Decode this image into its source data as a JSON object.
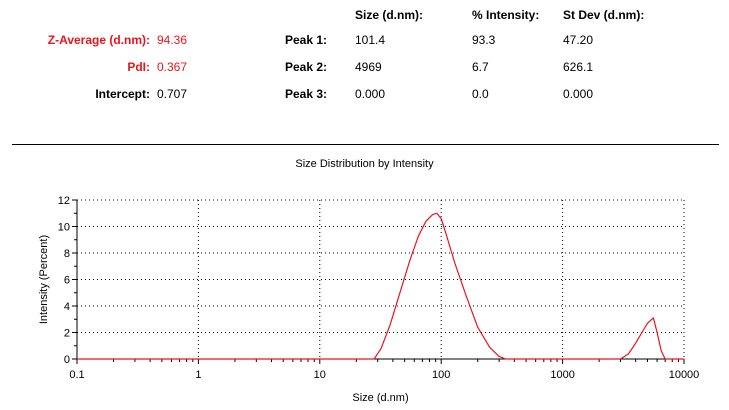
{
  "results": {
    "col_headers": [
      "Size (d.nm):",
      "% Intensity:",
      "St Dev (d.nm):"
    ],
    "summary": [
      {
        "label": "Z-Average (d.nm):",
        "value": "94.36",
        "highlight": true
      },
      {
        "label": "PdI:",
        "value": "0.367",
        "highlight": true
      },
      {
        "label": "Intercept:",
        "value": "0.707",
        "highlight": false
      }
    ],
    "peaks": [
      {
        "label": "Peak 1:",
        "size": "101.4",
        "intensity": "93.3",
        "stdev": "47.20"
      },
      {
        "label": "Peak 2:",
        "size": "4969",
        "intensity": "6.7",
        "stdev": "626.1"
      },
      {
        "label": "Peak 3:",
        "size": "0.000",
        "intensity": "0.0",
        "stdev": "0.000"
      }
    ],
    "colors": {
      "highlight": "#e8141b"
    }
  },
  "chart_data": {
    "type": "line",
    "title": "Size Distribution by Intensity",
    "xlabel": "Size (d.nm)",
    "ylabel": "Intensity (Percent)",
    "x_scale": "log",
    "xlim": [
      0.1,
      10000
    ],
    "ylim": [
      0,
      12
    ],
    "x_ticks": [
      "0.1",
      "1",
      "10",
      "100",
      "1000",
      "10000"
    ],
    "y_ticks": [
      "0",
      "2",
      "4",
      "6",
      "8",
      "10",
      "12"
    ],
    "grid": "dotted",
    "series": [
      {
        "color": "#e8141b",
        "x": [
          0.1,
          28,
          32,
          38,
          45,
          55,
          65,
          75,
          85,
          92,
          100,
          110,
          130,
          160,
          200,
          250,
          300,
          340,
          380,
          3000,
          3500,
          4000,
          4500,
          5000,
          5600,
          6000,
          6500,
          7000,
          10000
        ],
        "y": [
          0,
          0,
          0.8,
          2.6,
          4.8,
          7.4,
          9.3,
          10.4,
          10.9,
          11.0,
          10.6,
          9.4,
          7.2,
          4.8,
          2.4,
          0.9,
          0.2,
          0,
          0,
          0,
          0.4,
          1.2,
          2.0,
          2.7,
          3.1,
          2.0,
          0.6,
          0,
          0
        ]
      }
    ]
  }
}
